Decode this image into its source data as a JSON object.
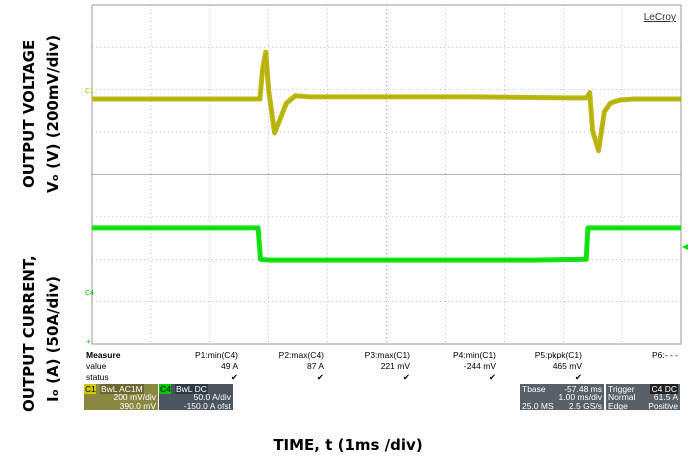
{
  "axis_labels": {
    "voltage_line1": "OUTPUT VOLTAGE",
    "voltage_line2": "Vₒ (V) (200mV/div)",
    "current_line1": "OUTPUT CURRENT,",
    "current_line2": "Iₒ (A)  (50A/div)",
    "time": "TIME, t (1ms /div)"
  },
  "scope": {
    "brand": "LeCroy",
    "c1_marker": "C1",
    "c4_marker": "C4",
    "colors": {
      "c1": "#b5b000",
      "c4": "#00e000",
      "grid": "#9a9a9a"
    }
  },
  "measure": {
    "heading": "Measure",
    "row_labels": [
      "value",
      "status"
    ],
    "columns": [
      {
        "name": "P1:min(C4)",
        "value": "49 A",
        "status": "✔"
      },
      {
        "name": "P2:max(C4)",
        "value": "87 A",
        "status": "✔"
      },
      {
        "name": "P3:max(C1)",
        "value": "221 mV",
        "status": "✔"
      },
      {
        "name": "P4:min(C1)",
        "value": "-244 mV",
        "status": "✔"
      },
      {
        "name": "P5:pkpk(C1)",
        "value": "465 mV",
        "status": "✔"
      },
      {
        "name": "P6:- - -",
        "value": "",
        "status": ""
      }
    ]
  },
  "channels": {
    "c1": {
      "tag": "C1",
      "flags": "BwL AC1M",
      "scale": "200 mV/div",
      "offset": "390.0 mV"
    },
    "c4": {
      "tag": "C4",
      "flags": "BwL DC",
      "scale": "50.0 A/div",
      "offset": "-150.0 A ofst"
    }
  },
  "timebase": {
    "label": "Tbase",
    "delay": "-57.48 ms",
    "per_div": "1.00 ms/div",
    "samples": "25.0 MS",
    "rate": "2.5 GS/s"
  },
  "trigger": {
    "label": "Trigger",
    "tags": "C4 DC",
    "mode": "Normal",
    "level": "61.5 A",
    "type": "Edge",
    "slope": "Positive"
  },
  "chart_data": {
    "type": "line",
    "title": "",
    "xlabel": "TIME, t (1ms /div)",
    "x_unit": "ms",
    "xlim": [
      0,
      10
    ],
    "grid": true,
    "series": [
      {
        "name": "C1",
        "ylabel": "Vₒ (V) (200mV/div)",
        "y_unit": "mV",
        "ylim": [
          -800,
          800
        ],
        "x": [
          0,
          1.5,
          2.85,
          2.9,
          2.95,
          3.0,
          3.1,
          3.2,
          3.3,
          3.45,
          3.7,
          4.0,
          6.5,
          8.0,
          8.4,
          8.45,
          8.5,
          8.6,
          8.7,
          8.8,
          8.95,
          9.2,
          10
        ],
        "values": [
          0,
          0,
          0,
          150,
          221,
          40,
          -160,
          -90,
          -20,
          15,
          10,
          10,
          10,
          5,
          5,
          30,
          -150,
          -244,
          -60,
          -20,
          -5,
          0,
          0
        ]
      },
      {
        "name": "C4",
        "ylabel": "Iₒ (A)  (50A/div)",
        "y_unit": "A",
        "ylim": [
          -50,
          350
        ],
        "x": [
          0,
          2.82,
          2.86,
          3.0,
          4.0,
          6.0,
          7.5,
          8.39,
          8.42,
          10
        ],
        "values": [
          87,
          87,
          50,
          49,
          49,
          49,
          49,
          50,
          87,
          87
        ]
      }
    ]
  }
}
